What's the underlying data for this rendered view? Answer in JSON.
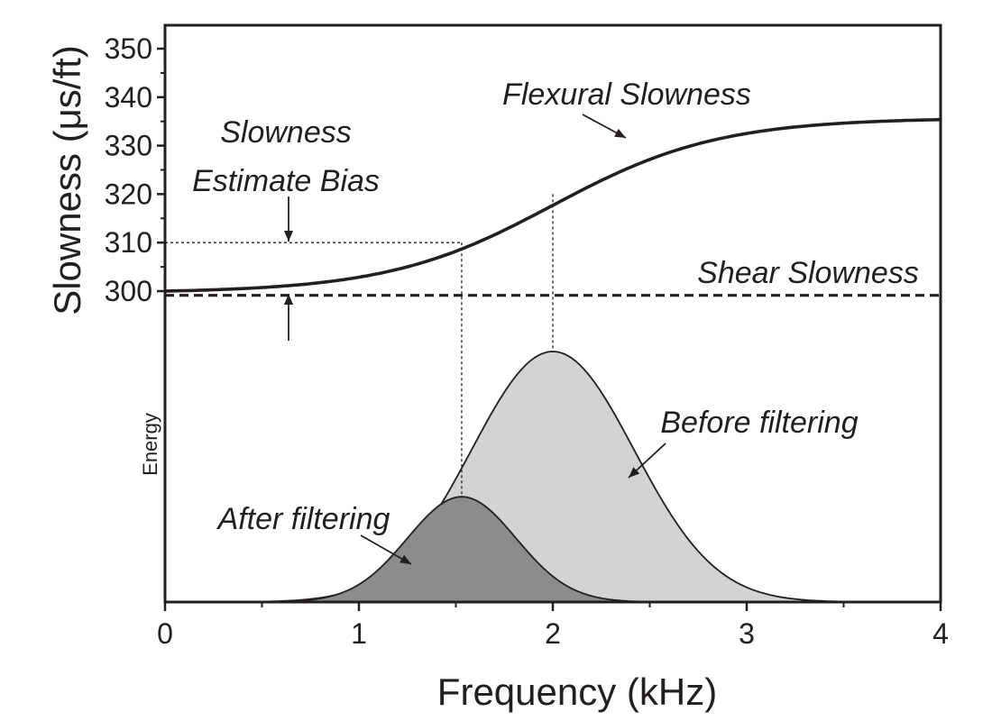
{
  "chart_data": {
    "type": "line",
    "xlabel": "Frequency (kHz)",
    "ylabel": "Slowness (μs/ft)",
    "energy_label": "Energy",
    "xlim": [
      0,
      4
    ],
    "ylim": [
      290,
      355
    ],
    "x_ticks": [
      "0",
      "1",
      "2",
      "3",
      "4"
    ],
    "y_ticks": [
      "350",
      "340",
      "330",
      "320",
      "310",
      "300"
    ],
    "colors": {
      "line": "#231f20",
      "before_fill": "#d1d3d4",
      "after_fill": "#8a8c8e"
    },
    "series": [
      {
        "name": "Flexural Slowness",
        "x": [
          0,
          0.5,
          0.8,
          1.0,
          1.2,
          1.4,
          1.53,
          1.7,
          2.0,
          2.3,
          2.6,
          2.9,
          3.1,
          3.5,
          4.0
        ],
        "values": [
          300,
          300,
          301.2,
          303,
          305.5,
          308.2,
          310,
          313.5,
          320,
          326,
          330.8,
          333.8,
          334.8,
          335.3,
          335.7
        ]
      },
      {
        "name": "Shear Slowness",
        "x": [
          0,
          4
        ],
        "values": [
          299.5,
          299.5
        ]
      }
    ],
    "energy_curves": [
      {
        "name": "Before filtering",
        "peak_x": 2.0,
        "width": 0.42,
        "relative_peak": 1.0
      },
      {
        "name": "After filtering",
        "peak_x": 1.53,
        "width": 0.28,
        "relative_peak": 0.42
      }
    ],
    "annotations": {
      "bias_line1": "Slowness",
      "bias_line2": "Estimate Bias",
      "flexural": "Flexural Slowness",
      "shear": "Shear Slowness",
      "before": "Before filtering",
      "after": "After filtering"
    },
    "reference_points": [
      {
        "x": 1.53,
        "y": 310
      },
      {
        "x": 2.0,
        "y": 320
      }
    ]
  }
}
